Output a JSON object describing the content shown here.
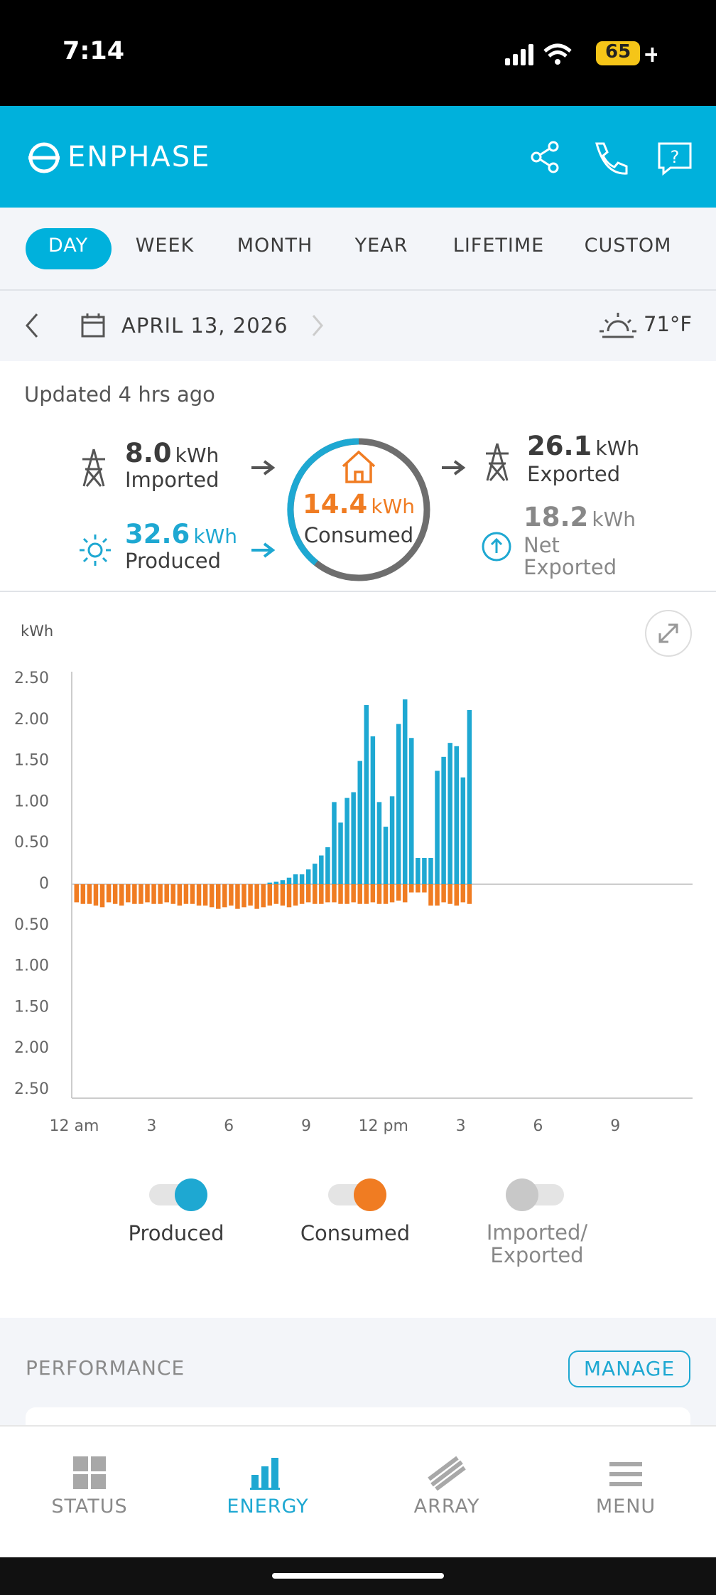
{
  "status_bar": {
    "time": "7:14",
    "battery": "65"
  },
  "header": {
    "brand": "ENPHASE"
  },
  "tabs": [
    "DAY",
    "WEEK",
    "MONTH",
    "YEAR",
    "LIFETIME",
    "CUSTOM"
  ],
  "date_row": {
    "date": "APRIL 13, 2026",
    "temperature": "71°F"
  },
  "updated": "Updated 4 hrs ago",
  "summary": {
    "imported": {
      "value": "8.0",
      "unit": "kWh",
      "label": "Imported"
    },
    "produced": {
      "value": "32.6",
      "unit": "kWh",
      "label": "Produced"
    },
    "consumed": {
      "value": "14.4",
      "unit": "kWh",
      "label": "Consumed"
    },
    "exported": {
      "value": "26.1",
      "unit": "kWh",
      "label": "Exported"
    },
    "net_exported": {
      "value": "18.2",
      "unit": "kWh",
      "label_1": "Net",
      "label_2": "Exported"
    }
  },
  "chart_data": {
    "type": "bar",
    "y_axis_label": "kWh",
    "xlim": [
      0,
      24
    ],
    "xticks": [
      {
        "value": 0,
        "label": "12 am"
      },
      3,
      6,
      9,
      {
        "value": 12,
        "label": "12 pm"
      },
      {
        "value": 15,
        "label": "3"
      },
      {
        "value": 18,
        "label": "6"
      },
      {
        "value": 21,
        "label": "9"
      }
    ],
    "ylim": [
      -2.5,
      2.5
    ],
    "yticks": [
      {
        "value": 2.5,
        "label": "2.50"
      },
      {
        "value": 2,
        "label": "2.00"
      },
      {
        "value": 1.5,
        "label": "1.50"
      },
      {
        "value": 1,
        "label": "1.00"
      },
      {
        "value": 0.5,
        "label": "0.50"
      },
      0,
      {
        "value": -0.5,
        "label": "0.50"
      },
      {
        "value": -1,
        "label": "1.00"
      },
      {
        "value": -1.5,
        "label": "1.50"
      },
      {
        "value": -2,
        "label": "2.00"
      },
      {
        "value": -2.5,
        "label": "2.50"
      }
    ],
    "x": [
      0,
      0.25,
      0.5,
      0.75,
      1,
      1.25,
      1.5,
      1.75,
      2,
      2.25,
      2.5,
      2.75,
      3,
      3.25,
      3.5,
      3.75,
      4,
      4.25,
      4.5,
      4.75,
      5,
      5.25,
      5.5,
      5.75,
      6,
      6.25,
      6.5,
      6.75,
      7,
      7.25,
      7.5,
      7.75,
      8,
      8.25,
      8.5,
      8.75,
      9,
      9.25,
      9.5,
      9.75,
      10,
      10.25,
      10.5,
      10.75,
      11,
      11.25,
      11.5,
      11.75,
      12,
      12.25,
      12.5,
      12.75,
      13,
      13.25,
      13.5,
      13.75,
      14,
      14.25,
      14.5,
      14.75,
      15,
      15.25
    ],
    "series": [
      {
        "name": "Produced",
        "color": "#1ea8d2",
        "values": [
          0,
          0,
          0,
          0,
          0,
          0,
          0,
          0,
          0,
          0,
          0,
          0,
          0,
          0,
          0,
          0,
          0,
          0,
          0,
          0,
          0,
          0,
          0,
          0,
          0,
          0,
          0,
          0,
          0,
          0,
          0.02,
          0.03,
          0.05,
          0.08,
          0.12,
          0.12,
          0.18,
          0.25,
          0.35,
          0.45,
          1.0,
          0.75,
          1.05,
          1.12,
          1.5,
          2.18,
          1.8,
          1.0,
          0.7,
          1.07,
          1.95,
          2.25,
          1.78,
          0.32,
          0.32,
          0.32,
          1.38,
          1.55,
          1.72,
          1.68,
          1.3,
          2.12
        ]
      },
      {
        "name": "Consumed",
        "color": "#f07c22",
        "values": [
          -0.22,
          -0.24,
          -0.24,
          -0.26,
          -0.28,
          -0.22,
          -0.24,
          -0.26,
          -0.22,
          -0.24,
          -0.24,
          -0.22,
          -0.24,
          -0.24,
          -0.22,
          -0.24,
          -0.26,
          -0.24,
          -0.24,
          -0.26,
          -0.26,
          -0.28,
          -0.3,
          -0.28,
          -0.26,
          -0.3,
          -0.28,
          -0.26,
          -0.3,
          -0.28,
          -0.26,
          -0.24,
          -0.26,
          -0.28,
          -0.26,
          -0.24,
          -0.22,
          -0.24,
          -0.24,
          -0.22,
          -0.22,
          -0.24,
          -0.24,
          -0.22,
          -0.24,
          -0.24,
          -0.22,
          -0.24,
          -0.24,
          -0.22,
          -0.2,
          -0.22,
          -0.1,
          -0.1,
          -0.1,
          -0.26,
          -0.26,
          -0.22,
          -0.24,
          -0.26,
          -0.22,
          -0.24
        ]
      }
    ]
  },
  "extra_toggle": {
    "label": "Imported/ Exported"
  },
  "performance": {
    "title": "PERFORMANCE",
    "button": "MANAGE"
  },
  "bottom_nav": [
    "STATUS",
    "ENERGY",
    "ARRAY",
    "MENU"
  ]
}
